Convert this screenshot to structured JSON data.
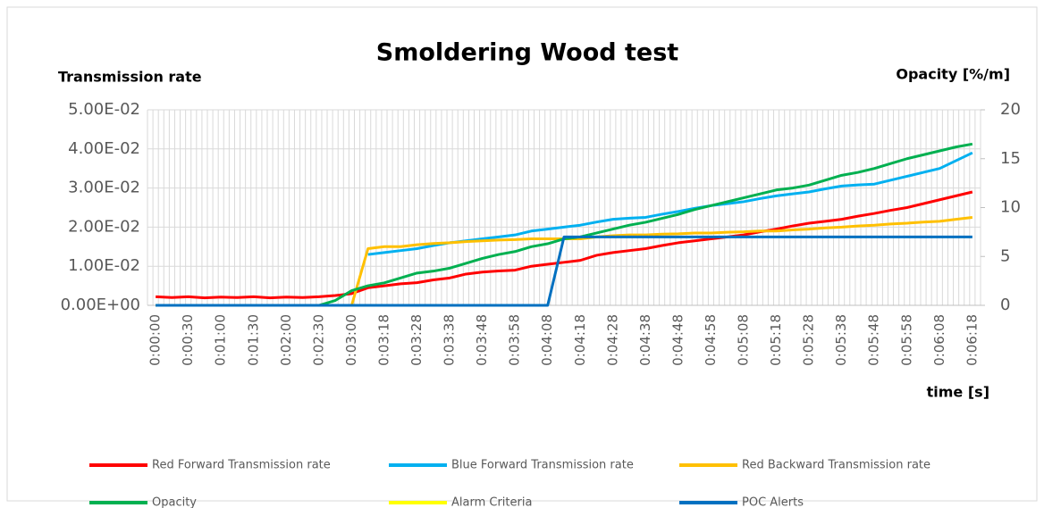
{
  "chart_data": {
    "type": "line",
    "title": "Smoldering Wood test",
    "ylabel": "Transmission rate",
    "y2label": "Opacity [%/m]",
    "xlabel": "time [s]",
    "categories": [
      "0:00:00",
      null,
      "0:00:30",
      null,
      "0:01:00",
      null,
      "0:01:30",
      null,
      "0:02:00",
      null,
      "0:02:30",
      null,
      "0:03:00",
      null,
      "0:03:18",
      null,
      "0:03:28",
      null,
      "0:03:38",
      null,
      "0:03:48",
      null,
      "0:03:58",
      null,
      "0:04:08",
      null,
      "0:04:18",
      null,
      "0:04:28",
      null,
      "0:04:38",
      null,
      "0:04:48",
      null,
      "0:04:58",
      null,
      "0:05:08",
      null,
      "0:05:18",
      null,
      "0:05:28",
      null,
      "0:05:38",
      null,
      "0:05:48",
      null,
      "0:05:58",
      null,
      "0:06:08",
      null,
      "0:06:18"
    ],
    "ylim": [
      0,
      0.05
    ],
    "yticks": [
      {
        "value": 0,
        "label": "0.00E+00"
      },
      {
        "value": 0.01,
        "label": "1.00E-02"
      },
      {
        "value": 0.02,
        "label": "2.00E-02"
      },
      {
        "value": 0.03,
        "label": "3.00E-02"
      },
      {
        "value": 0.04,
        "label": "4.00E-02"
      },
      {
        "value": 0.05,
        "label": "5.00E-02"
      }
    ],
    "y2lim": [
      0,
      20
    ],
    "y2ticks": [
      0,
      5,
      10,
      15,
      20
    ],
    "grid": true,
    "series": [
      {
        "name": "Red Forward Transmission rate",
        "color": "#ff0000",
        "values": [
          0.0022,
          0.002,
          0.0022,
          0.0019,
          0.0021,
          0.002,
          0.0022,
          0.0019,
          0.0021,
          0.002,
          0.0022,
          0.0025,
          0.003,
          0.0045,
          0.005,
          0.0055,
          0.0058,
          0.0065,
          0.007,
          0.008,
          0.0085,
          0.0088,
          0.009,
          0.01,
          0.0105,
          0.011,
          0.0115,
          0.0128,
          0.0135,
          0.014,
          0.0145,
          0.0153,
          0.016,
          0.0165,
          0.017,
          0.0175,
          0.018,
          0.0188,
          0.0195,
          0.0203,
          0.021,
          0.0215,
          0.022,
          0.0228,
          0.0235,
          0.0243,
          0.025,
          0.026,
          0.027,
          0.028,
          0.029
        ]
      },
      {
        "name": "Blue Forward Transmission rate",
        "color": "#00b0f0",
        "values": [
          null,
          null,
          null,
          null,
          null,
          null,
          null,
          null,
          null,
          null,
          null,
          null,
          null,
          0.013,
          0.0135,
          0.014,
          0.0145,
          0.0153,
          0.016,
          0.0165,
          0.017,
          0.0175,
          0.018,
          0.019,
          0.0195,
          0.02,
          0.0205,
          0.0213,
          0.022,
          0.0223,
          0.0225,
          0.0233,
          0.024,
          0.0248,
          0.0255,
          0.026,
          0.0265,
          0.0273,
          0.028,
          0.0285,
          0.029,
          0.0298,
          0.0305,
          0.0308,
          0.031,
          0.032,
          0.033,
          0.034,
          0.035,
          0.037,
          0.039
        ]
      },
      {
        "name": "Red Backward Transmission rate",
        "color": "#ffc000",
        "values": [
          0,
          0,
          0,
          0,
          0,
          0,
          0,
          0,
          0,
          0,
          0,
          0,
          0,
          0.0145,
          0.015,
          0.015,
          0.0155,
          0.0158,
          0.016,
          0.0163,
          0.0165,
          0.0167,
          0.0168,
          0.017,
          0.017,
          0.017,
          0.017,
          0.0175,
          0.0178,
          0.018,
          0.018,
          0.0182,
          0.0183,
          0.0185,
          0.0185,
          0.0187,
          0.0188,
          0.019,
          0.019,
          0.0193,
          0.0195,
          0.0198,
          0.02,
          0.0203,
          0.0205,
          0.0208,
          0.021,
          0.0213,
          0.0215,
          0.022,
          0.0225
        ]
      },
      {
        "name": "Opacity",
        "color": "#00b050",
        "axis": "y2",
        "values": [
          0,
          0,
          0,
          0,
          0,
          0,
          0,
          0,
          0,
          0,
          0,
          0.5,
          1.5,
          2,
          2.3,
          2.8,
          3.3,
          3.5,
          3.8,
          4.3,
          4.8,
          5.2,
          5.5,
          6,
          6.3,
          6.8,
          7,
          7.4,
          7.8,
          8.2,
          8.5,
          8.9,
          9.3,
          9.8,
          10.2,
          10.6,
          11,
          11.4,
          11.8,
          12,
          12.3,
          12.8,
          13.3,
          13.6,
          14,
          14.5,
          15,
          15.4,
          15.8,
          16.2,
          16.5
        ]
      },
      {
        "name": "Alarm Criteria",
        "color": "#ffff00",
        "axis": "y2",
        "values": [
          null,
          null,
          null,
          null,
          null,
          null,
          null,
          null,
          null,
          null,
          null,
          null,
          null,
          null,
          null,
          null,
          null,
          null,
          null,
          null,
          null,
          null,
          null,
          null,
          null,
          null,
          null,
          null,
          null,
          null,
          null,
          null,
          null,
          null,
          null,
          null,
          null,
          null,
          null,
          null,
          null,
          null,
          null,
          null,
          null,
          null,
          null,
          null,
          null,
          null,
          null
        ]
      },
      {
        "name": "POC Alerts",
        "color": "#0070c0",
        "axis": "y2",
        "values": [
          0,
          0,
          0,
          0,
          0,
          0,
          0,
          0,
          0,
          0,
          0,
          0,
          0,
          0,
          0,
          0,
          0,
          0,
          0,
          0,
          0,
          0,
          0,
          0,
          0,
          7,
          7,
          7,
          7,
          7,
          7,
          7,
          7,
          7,
          7,
          7,
          7,
          7,
          7,
          7,
          7,
          7,
          7,
          7,
          7,
          7,
          7,
          7,
          7,
          7,
          7
        ]
      }
    ]
  }
}
